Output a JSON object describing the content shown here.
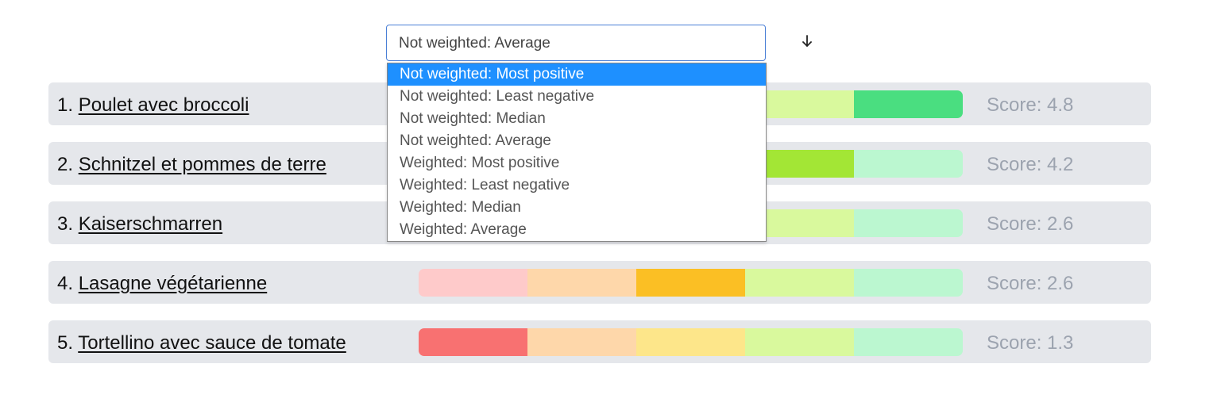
{
  "sort": {
    "selected_label": "Not weighted: Average",
    "options": [
      "Not weighted: Most positive",
      "Not weighted: Least negative",
      "Not weighted: Median",
      "Not weighted: Average",
      "Weighted: Most positive",
      "Weighted: Least negative",
      "Weighted: Median",
      "Weighted: Average"
    ],
    "highlighted_index": 0,
    "direction_icon": "arrow-down-icon"
  },
  "colors": {
    "bar_segments_inactive": [
      "#fecaca",
      "#fed7aa",
      "#fde68a",
      "#d9f99d",
      "#bbf7d0"
    ],
    "bar_segments_active": [
      "#f87171",
      "#fb923c",
      "#fbbf24",
      "#a3e635",
      "#4ade80"
    ],
    "row_background": "#e5e7eb",
    "option_highlight": "#1e90ff"
  },
  "items": [
    {
      "rank": "1.",
      "name": "Poulet avec broccoli",
      "score": "Score: 4.8",
      "active_segment": 4
    },
    {
      "rank": "2.",
      "name": "Schnitzel et pommes de terre",
      "score": "Score: 4.2",
      "active_segment": 3
    },
    {
      "rank": "3.",
      "name": "Kaiserschmarren",
      "score": "Score: 2.6",
      "active_segment": null
    },
    {
      "rank": "4.",
      "name": "Lasagne végétarienne",
      "score": "Score: 2.6",
      "active_segment": 2
    },
    {
      "rank": "5.",
      "name": "Tortellino avec sauce de tomate",
      "score": "Score: 1.3",
      "active_segment": 0
    }
  ]
}
